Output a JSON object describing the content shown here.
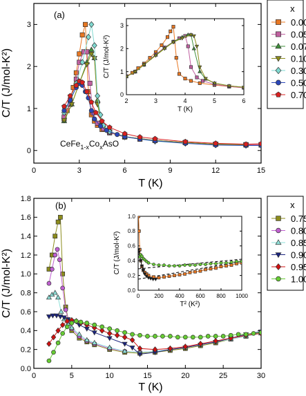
{
  "chart_data": [
    {
      "type": "scatter",
      "panel_label": "(a)",
      "xlabel": "T (K)",
      "ylabel": "C/T (J/mol-K²)",
      "xlim": [
        0,
        15
      ],
      "ylim": [
        -0.3,
        3.5
      ],
      "xticks": [
        0,
        3,
        6,
        9,
        12,
        15
      ],
      "yticks": [
        0,
        1,
        2,
        3
      ],
      "annotation": {
        "base": "CeFe",
        "sub1": "1-x",
        "mid": "Co",
        "sub2": "x",
        "tail": "AsO"
      },
      "legend": {
        "title": "x",
        "position": "right"
      },
      "series": [
        {
          "name": "0.00",
          "color": "#e87722",
          "marker": "square",
          "x": [
            2.0,
            2.2,
            2.4,
            2.6,
            2.8,
            3.0,
            3.2,
            3.4,
            3.6,
            3.8,
            4.0,
            4.2,
            4.5,
            5,
            6,
            7,
            8,
            10,
            12,
            14,
            15
          ],
          "y": [
            0.75,
            0.95,
            1.2,
            1.5,
            1.85,
            2.3,
            2.75,
            3.0,
            1.4,
            0.85,
            0.7,
            0.6,
            0.5,
            0.42,
            0.32,
            0.27,
            0.24,
            0.19,
            0.15,
            0.13,
            0.13
          ]
        },
        {
          "name": "0.05",
          "color": "#c060a0",
          "marker": "square",
          "x": [
            2.0,
            2.4,
            2.8,
            3.0,
            3.3,
            3.5,
            3.7,
            3.9,
            4.2,
            4.6,
            5,
            6,
            7,
            8,
            10,
            12,
            14,
            15
          ],
          "y": [
            0.8,
            1.1,
            1.7,
            2.1,
            2.35,
            2.35,
            1.6,
            0.9,
            0.65,
            0.52,
            0.43,
            0.33,
            0.27,
            0.24,
            0.19,
            0.15,
            0.14,
            0.14
          ]
        },
        {
          "name": "0.07",
          "color": "#3f8f3a",
          "marker": "triangle-up",
          "x": [
            2.0,
            2.5,
            3.0,
            3.5,
            3.8,
            4.0,
            4.2,
            4.5,
            5,
            6,
            8,
            10,
            12,
            14
          ],
          "y": [
            0.7,
            1.1,
            1.6,
            2.1,
            2.4,
            2.2,
            1.2,
            0.6,
            0.45,
            0.33,
            0.24,
            0.19,
            0.15,
            0.14
          ]
        },
        {
          "name": "0.10",
          "color": "#8c8c1c",
          "marker": "triangle-down",
          "x": [
            2.0,
            2.5,
            3.0,
            3.5,
            3.8,
            4.0,
            4.2,
            4.5,
            5,
            6,
            8,
            10,
            12,
            14
          ],
          "y": [
            0.72,
            1.1,
            1.6,
            2.05,
            2.3,
            2.2,
            1.1,
            0.6,
            0.45,
            0.33,
            0.24,
            0.19,
            0.15,
            0.14
          ]
        },
        {
          "name": "0.30",
          "color": "#7fd9d0",
          "marker": "diamond",
          "x": [
            2.0,
            2.4,
            2.8,
            3.2,
            3.6,
            3.8,
            4.0,
            4.2,
            4.4,
            4.6,
            5,
            6,
            8,
            10,
            12,
            14
          ],
          "y": [
            0.9,
            1.2,
            1.6,
            2.1,
            2.7,
            3.0,
            2.5,
            1.3,
            0.85,
            0.6,
            0.45,
            0.32,
            0.22,
            0.17,
            0.13,
            0.12
          ]
        },
        {
          "name": "0.50",
          "color": "#2a46b8",
          "marker": "circle",
          "x": [
            2.0,
            2.4,
            2.8,
            3.0,
            3.2,
            3.4,
            3.6,
            3.8,
            4.0,
            4.4,
            4.8,
            5.5,
            6,
            7,
            8,
            10,
            12,
            14,
            15
          ],
          "y": [
            0.95,
            1.2,
            1.5,
            1.6,
            1.55,
            1.4,
            1.25,
            0.95,
            0.75,
            0.58,
            0.48,
            0.38,
            0.33,
            0.27,
            0.23,
            0.17,
            0.13,
            0.12,
            0.12
          ]
        },
        {
          "name": "0.70",
          "color": "#d82020",
          "marker": "pentagon",
          "x": [
            2.0,
            2.4,
            2.8,
            3.0,
            3.2,
            3.5,
            3.8,
            4.1,
            4.5,
            5,
            6,
            7,
            8,
            10,
            12,
            14,
            15
          ],
          "y": [
            1.05,
            1.3,
            1.55,
            1.65,
            1.62,
            1.4,
            1.15,
            0.9,
            0.7,
            0.55,
            0.4,
            0.32,
            0.28,
            0.21,
            0.17,
            0.15,
            0.16
          ]
        }
      ],
      "inset": {
        "xlabel": "T (K)",
        "ylabel": "C/T (J/mol-K²)",
        "xlim": [
          2,
          6
        ],
        "ylim": [
          0,
          3.3
        ],
        "xticks": [
          2,
          3,
          4,
          5,
          6
        ],
        "yticks": [
          0,
          1,
          2,
          3
        ],
        "series": [
          {
            "name": "0.00",
            "x": [
              2.0,
              2.2,
              2.4,
              2.6,
              2.8,
              3.0,
              3.2,
              3.4,
              3.5,
              3.6,
              3.7,
              3.8,
              4.0,
              4.2,
              4.5,
              5,
              5.5,
              6
            ],
            "y": [
              0.8,
              0.95,
              1.15,
              1.35,
              1.6,
              1.85,
              2.15,
              2.5,
              2.75,
              2.95,
              1.6,
              0.9,
              0.7,
              0.6,
              0.5,
              0.42,
              0.35,
              0.3
            ]
          },
          {
            "name": "0.05",
            "x": [
              2.0,
              2.3,
              2.6,
              3.0,
              3.3,
              3.6,
              3.8,
              4.0,
              4.1,
              4.2,
              4.4,
              4.6,
              5,
              5.5,
              6
            ],
            "y": [
              0.8,
              1.0,
              1.3,
              1.75,
              2.05,
              2.3,
              2.45,
              2.55,
              2.1,
              1.2,
              0.75,
              0.6,
              0.45,
              0.36,
              0.3
            ]
          },
          {
            "name": "0.07",
            "x": [
              2.0,
              2.3,
              2.6,
              3.0,
              3.3,
              3.6,
              3.9,
              4.1,
              4.2,
              4.3,
              4.5,
              4.7,
              5,
              5.5,
              6
            ],
            "y": [
              0.78,
              1.0,
              1.3,
              1.72,
              2.02,
              2.3,
              2.5,
              2.6,
              2.6,
              2.0,
              1.0,
              0.68,
              0.5,
              0.38,
              0.32
            ]
          },
          {
            "name": "0.10",
            "x": [
              2.0,
              2.3,
              2.6,
              3.0,
              3.3,
              3.6,
              3.9,
              4.2,
              4.3,
              4.4,
              4.5,
              4.7,
              5,
              5.5,
              6
            ],
            "y": [
              0.78,
              1.0,
              1.3,
              1.7,
              2.0,
              2.28,
              2.45,
              2.6,
              2.55,
              2.1,
              1.2,
              0.7,
              0.5,
              0.38,
              0.32
            ]
          }
        ]
      }
    },
    {
      "type": "scatter",
      "panel_label": "(b)",
      "xlabel": "T (K)",
      "ylabel": "C/T (J/mol-K²)",
      "xlim": [
        0,
        30
      ],
      "ylim": [
        0,
        1.8
      ],
      "xticks": [
        0,
        5,
        10,
        15,
        20,
        25,
        30
      ],
      "yticks": [
        0.0,
        0.2,
        0.4,
        0.6,
        0.8,
        1.0,
        1.2,
        1.4,
        1.6,
        1.8
      ],
      "legend": {
        "title": "x",
        "position": "right"
      },
      "series": [
        {
          "name": "0.75",
          "color": "#8c8c1c",
          "marker": "square",
          "x": [
            2.0,
            2.4,
            2.8,
            3.2,
            3.5,
            3.8,
            4.2,
            4.6,
            5,
            6,
            7,
            8,
            10,
            12,
            14,
            16,
            18,
            20,
            22,
            24,
            26,
            28,
            30
          ],
          "y": [
            1.05,
            1.2,
            1.4,
            1.55,
            1.6,
            1.0,
            0.65,
            0.5,
            0.4,
            0.32,
            0.28,
            0.25,
            0.2,
            0.17,
            0.16,
            0.17,
            0.19,
            0.21,
            0.24,
            0.27,
            0.31,
            0.34,
            0.38
          ]
        },
        {
          "name": "0.80",
          "color": "#c060d0",
          "marker": "circle",
          "x": [
            2.0,
            2.4,
            2.8,
            3.1,
            3.4,
            3.8,
            4.2,
            4.6,
            5,
            6,
            7,
            8,
            10,
            12,
            14,
            16,
            18,
            20,
            22,
            24,
            26,
            28,
            30
          ],
          "y": [
            0.9,
            1.05,
            1.2,
            1.26,
            1.15,
            0.85,
            0.62,
            0.5,
            0.42,
            0.34,
            0.29,
            0.26,
            0.21,
            0.18,
            0.17,
            0.18,
            0.2,
            0.22,
            0.25,
            0.28,
            0.31,
            0.35,
            0.38
          ]
        },
        {
          "name": "0.85",
          "color": "#8fe0d8",
          "marker": "triangle-up",
          "x": [
            2.0,
            2.4,
            2.8,
            3.2,
            3.6,
            4.0,
            4.5,
            5,
            6,
            7,
            8,
            10,
            12,
            14,
            16,
            18,
            20,
            22,
            24,
            26,
            28,
            30
          ],
          "y": [
            0.75,
            0.78,
            0.8,
            0.75,
            0.6,
            0.52,
            0.47,
            0.43,
            0.36,
            0.3,
            0.27,
            0.22,
            0.18,
            0.17,
            0.18,
            0.2,
            0.22,
            0.25,
            0.28,
            0.31,
            0.34,
            0.37
          ]
        },
        {
          "name": "0.90",
          "color": "#1a237e",
          "marker": "triangle-down",
          "x": [
            2.0,
            2.5,
            3.0,
            3.5,
            4.0,
            4.5,
            5,
            6,
            7,
            8,
            10,
            12,
            13,
            14,
            16,
            18,
            20,
            22,
            24,
            26,
            28,
            30
          ],
          "y": [
            0.55,
            0.56,
            0.56,
            0.55,
            0.54,
            0.52,
            0.5,
            0.46,
            0.42,
            0.38,
            0.32,
            0.26,
            0.22,
            0.15,
            0.17,
            0.2,
            0.22,
            0.25,
            0.28,
            0.32,
            0.36,
            0.39
          ]
        },
        {
          "name": "0.95",
          "color": "#d01010",
          "marker": "diamond",
          "x": [
            2.0,
            2.6,
            3.2,
            3.8,
            4.4,
            5,
            5.6,
            6.2,
            7,
            8,
            9,
            10,
            11,
            12,
            13,
            14,
            16,
            18,
            20,
            22,
            24,
            26,
            28,
            30
          ],
          "y": [
            0.26,
            0.33,
            0.4,
            0.46,
            0.5,
            0.51,
            0.5,
            0.48,
            0.46,
            0.43,
            0.4,
            0.37,
            0.35,
            0.33,
            0.3,
            0.21,
            0.2,
            0.21,
            0.23,
            0.26,
            0.29,
            0.32,
            0.35,
            0.37
          ]
        },
        {
          "name": "1.00",
          "color": "#66cc33",
          "marker": "circle",
          "x": [
            2.0,
            2.6,
            3.2,
            3.8,
            4.4,
            5,
            5.6,
            6.2,
            7,
            8,
            9,
            10,
            11,
            12,
            13,
            14,
            15,
            16,
            17,
            18,
            19,
            20,
            21,
            22,
            23,
            24,
            25,
            26,
            27,
            28,
            29,
            30
          ],
          "y": [
            0.08,
            0.17,
            0.27,
            0.37,
            0.44,
            0.48,
            0.5,
            0.49,
            0.48,
            0.46,
            0.44,
            0.42,
            0.4,
            0.38,
            0.36,
            0.35,
            0.34,
            0.34,
            0.34,
            0.34,
            0.33,
            0.33,
            0.33,
            0.33,
            0.34,
            0.34,
            0.34,
            0.35,
            0.36,
            0.36,
            0.37,
            0.38
          ]
        }
      ],
      "inset": {
        "xlabel": "T² (K²)",
        "ylabel": "C/T (J/mol-K²)",
        "xlim": [
          0,
          1000
        ],
        "ylim": [
          0,
          1.0
        ],
        "xticks": [
          0,
          200,
          400,
          600,
          800,
          1000
        ],
        "yticks": [
          0.0,
          0.2,
          0.4,
          0.6,
          0.8,
          1.0
        ],
        "series": [
          {
            "name": "0.75",
            "color": "#e87722",
            "marker": "square",
            "x": [
              4,
              9,
              16,
              25,
              36,
              49,
              64,
              81,
              100,
              150,
              200,
              250,
              300,
              350,
              400,
              450,
              500,
              550,
              600,
              650,
              700,
              750,
              800,
              850,
              900,
              950,
              1000
            ],
            "y": [
              1.0,
              0.8,
              0.55,
              0.4,
              0.32,
              0.27,
              0.24,
              0.22,
              0.2,
              0.18,
              0.17,
              0.18,
              0.19,
              0.2,
              0.21,
              0.22,
              0.24,
              0.25,
              0.26,
              0.28,
              0.29,
              0.3,
              0.32,
              0.33,
              0.34,
              0.36,
              0.37
            ]
          },
          {
            "name": "0.90",
            "color": "#111111",
            "marker": "triangle-down",
            "x": [
              4,
              9,
              16,
              25,
              36,
              49,
              64,
              81,
              100,
              121,
              144,
              169
            ],
            "y": [
              0.55,
              0.52,
              0.48,
              0.4,
              0.33,
              0.27,
              0.22,
              0.19,
              0.17,
              0.16,
              0.15,
              0.15
            ]
          },
          {
            "name": "1.00",
            "color": "#66cc33",
            "marker": "circle",
            "x": [
              16,
              25,
              36,
              49,
              64,
              81,
              100,
              150,
              200,
              250,
              300,
              350,
              400,
              450,
              500,
              550,
              600,
              650,
              700,
              750,
              800,
              850,
              900,
              950,
              1000
            ],
            "y": [
              0.45,
              0.48,
              0.46,
              0.43,
              0.41,
              0.39,
              0.37,
              0.35,
              0.34,
              0.34,
              0.33,
              0.33,
              0.33,
              0.34,
              0.34,
              0.34,
              0.35,
              0.35,
              0.36,
              0.36,
              0.37,
              0.37,
              0.38,
              0.39,
              0.39
            ]
          }
        ],
        "fit_lines": [
          {
            "x": [
              0,
              1000
            ],
            "y": [
              0.15,
              0.39
            ]
          },
          {
            "x": [
              0,
              1000
            ],
            "y": [
              0.29,
              0.42
            ]
          }
        ]
      }
    }
  ]
}
